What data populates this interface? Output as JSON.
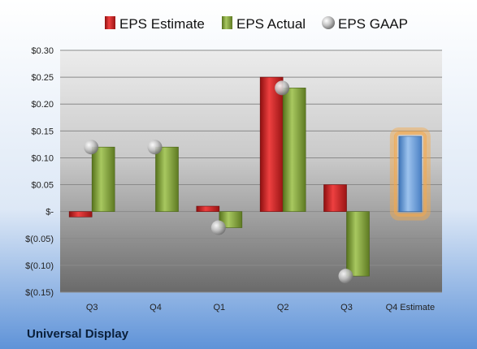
{
  "company": "Universal Display",
  "chart_data": {
    "type": "bar",
    "categories": [
      "Q3",
      "Q4",
      "Q1",
      "Q2",
      "Q3",
      "Q4 Estimate"
    ],
    "series": [
      {
        "name": "EPS Estimate",
        "color": "#d42a2a",
        "values": [
          -0.01,
          null,
          0.01,
          0.25,
          0.05,
          null
        ]
      },
      {
        "name": "EPS Actual",
        "color": "#86a83c",
        "values": [
          0.12,
          0.12,
          -0.03,
          0.23,
          -0.12,
          null
        ]
      },
      {
        "name": "EPS GAAP",
        "color": "#bdbdbd",
        "values": [
          0.12,
          0.12,
          -0.03,
          0.23,
          -0.12,
          null
        ]
      }
    ],
    "forecast": {
      "category": "Q4 Estimate",
      "value": 0.14,
      "color": "#6fa3dc",
      "glow": "#f5a84a"
    },
    "ylim": [
      -0.15,
      0.3
    ],
    "yticks": [
      -0.15,
      -0.1,
      -0.05,
      0,
      0.05,
      0.1,
      0.15,
      0.2,
      0.25,
      0.3
    ],
    "ytick_labels": [
      "$(0.15)",
      "$(0.10)",
      "$(0.05)",
      "$-",
      "$0.05",
      "$0.10",
      "$0.15",
      "$0.20",
      "$0.25",
      "$0.30"
    ],
    "grid": true,
    "legend_position": "top",
    "xlabel": "",
    "ylabel": ""
  }
}
